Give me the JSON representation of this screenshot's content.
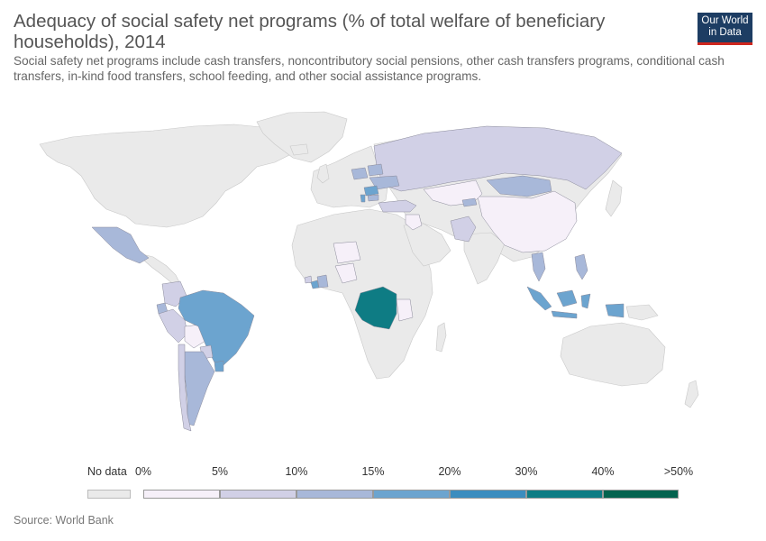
{
  "title": "Adequacy of social safety net programs (% of total welfare of beneficiary households), 2014",
  "subtitle": "Social safety net programs include cash transfers, noncontributory social pensions, other cash transfers programs, conditional cash transfers, in-kind food transfers, school feeding, and other social assistance programs.",
  "logo": {
    "line1": "Our World",
    "line2": "in Data"
  },
  "source": "Source: World Bank",
  "colors": {
    "no_data": "#eaeaea",
    "bins": [
      "#f6f0f9",
      "#d1d0e6",
      "#a8b8d9",
      "#6ca4cf",
      "#3b8dbf",
      "#0e7c84",
      "#04634f"
    ],
    "border": "#b5b5b5"
  },
  "legend": {
    "no_data_label": "No data",
    "ticks": [
      "0%",
      "5%",
      "10%",
      "15%",
      "20%",
      "30%",
      "40%",
      ">50%"
    ]
  },
  "countries": [
    {
      "name": "Russia",
      "bin": 1
    },
    {
      "name": "Mongolia",
      "bin": 2
    },
    {
      "name": "China",
      "bin": 0
    },
    {
      "name": "Kazakhstan",
      "bin": 0
    },
    {
      "name": "Kyrgyzstan",
      "bin": 2
    },
    {
      "name": "Pakistan",
      "bin": 1
    },
    {
      "name": "Turkey",
      "bin": 1
    },
    {
      "name": "Iraq",
      "bin": 0
    },
    {
      "name": "Poland",
      "bin": 2
    },
    {
      "name": "Belarus",
      "bin": 2
    },
    {
      "name": "Ukraine",
      "bin": 2
    },
    {
      "name": "Romania",
      "bin": 3
    },
    {
      "name": "Bulgaria",
      "bin": 2
    },
    {
      "name": "Albania",
      "bin": 3
    },
    {
      "name": "Mexico",
      "bin": 2
    },
    {
      "name": "Colombia",
      "bin": 1
    },
    {
      "name": "Ecuador",
      "bin": 2
    },
    {
      "name": "Peru",
      "bin": 1
    },
    {
      "name": "Bolivia",
      "bin": 0
    },
    {
      "name": "Brazil",
      "bin": 3
    },
    {
      "name": "Argentina",
      "bin": 2
    },
    {
      "name": "Uruguay",
      "bin": 3
    },
    {
      "name": "Chile",
      "bin": 1
    },
    {
      "name": "Paraguay",
      "bin": 1
    },
    {
      "name": "Sierra Leone",
      "bin": 1
    },
    {
      "name": "Liberia",
      "bin": 3
    },
    {
      "name": "Ivory Coast",
      "bin": 2
    },
    {
      "name": "Nigeria",
      "bin": 0
    },
    {
      "name": "Niger",
      "bin": 0
    },
    {
      "name": "Democratic Republic of Congo",
      "bin": 5
    },
    {
      "name": "Tanzania",
      "bin": 0
    },
    {
      "name": "Thailand",
      "bin": 2
    },
    {
      "name": "Philippines",
      "bin": 2
    },
    {
      "name": "Indonesia",
      "bin": 3
    }
  ]
}
